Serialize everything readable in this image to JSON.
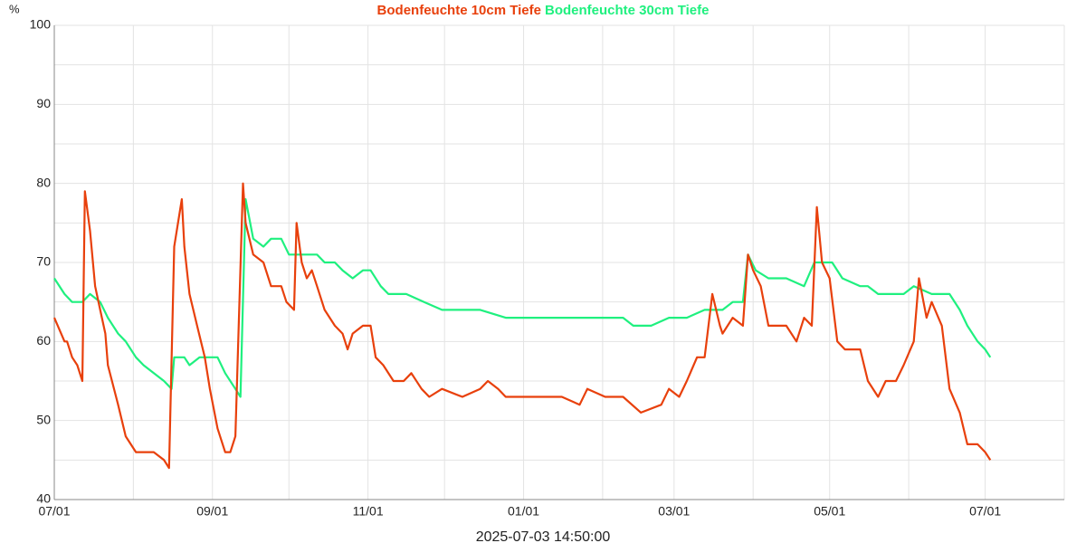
{
  "chart_data": {
    "type": "line",
    "x_label": "2025-07-03 14:50:00",
    "y_label": "%",
    "xlim": [
      0,
      396
    ],
    "xticks": [
      {
        "value": 0,
        "label": "07/01"
      },
      {
        "value": 62,
        "label": "09/01"
      },
      {
        "value": 123,
        "label": "11/01"
      },
      {
        "value": 184,
        "label": "01/01"
      },
      {
        "value": 243,
        "label": "03/01"
      },
      {
        "value": 304,
        "label": "05/01"
      },
      {
        "value": 365,
        "label": "07/01"
      }
    ],
    "xminor": [
      31,
      92,
      153,
      215,
      274,
      335,
      396
    ],
    "ylim": [
      40,
      100
    ],
    "yticks": [
      40,
      50,
      60,
      70,
      80,
      90,
      100
    ],
    "yminor": [
      45,
      55,
      65,
      75,
      85,
      95
    ],
    "grid": true,
    "series": [
      {
        "name": "Bodenfeuchte 10cm Tiefe",
        "color": "#e8400c",
        "x": [
          0,
          4,
          5,
          7,
          9,
          11,
          12,
          14,
          16,
          18,
          20,
          21,
          25,
          28,
          32,
          39,
          43,
          45,
          47,
          50,
          51,
          53,
          56,
          59,
          61,
          64,
          67,
          69,
          71,
          74,
          75,
          78,
          82,
          85,
          89,
          91,
          94,
          95,
          97,
          99,
          101,
          103,
          106,
          110,
          113,
          115,
          117,
          121,
          124,
          126,
          129,
          133,
          137,
          140,
          144,
          147,
          152,
          160,
          167,
          170,
          174,
          177,
          191,
          199,
          206,
          209,
          216,
          223,
          230,
          238,
          241,
          245,
          248,
          252,
          255,
          258,
          261,
          262,
          266,
          270,
          272,
          274,
          277,
          280,
          287,
          291,
          294,
          297,
          299,
          301,
          304,
          307,
          310,
          316,
          319,
          323,
          326,
          330,
          333,
          337,
          339,
          342,
          344,
          348,
          351,
          355,
          358,
          362,
          365,
          367
        ],
        "values": [
          63,
          60,
          60,
          58,
          57,
          55,
          79,
          74,
          67,
          64,
          61,
          57,
          52,
          48,
          46,
          46,
          45,
          44,
          72,
          78,
          72,
          66,
          62,
          58,
          54,
          49,
          46,
          46,
          48,
          80,
          75,
          71,
          70,
          67,
          67,
          65,
          64,
          75,
          70,
          68,
          69,
          67,
          64,
          62,
          61,
          59,
          61,
          62,
          62,
          58,
          57,
          55,
          55,
          56,
          54,
          53,
          54,
          53,
          54,
          55,
          54,
          53,
          53,
          53,
          52,
          54,
          53,
          53,
          51,
          52,
          54,
          53,
          55,
          58,
          58,
          66,
          62,
          61,
          63,
          62,
          71,
          69,
          67,
          62,
          62,
          60,
          63,
          62,
          77,
          70,
          68,
          60,
          59,
          59,
          55,
          53,
          55,
          55,
          57,
          60,
          68,
          63,
          65,
          62,
          54,
          51,
          47,
          47,
          46,
          45
        ]
      },
      {
        "name": "Bodenfeuchte 30cm Tiefe",
        "color": "#1ff07f",
        "x": [
          0,
          4,
          7,
          11,
          14,
          18,
          21,
          25,
          28,
          32,
          35,
          39,
          43,
          46,
          47,
          51,
          53,
          57,
          64,
          67,
          71,
          73,
          75,
          78,
          82,
          85,
          89,
          92,
          96,
          103,
          106,
          110,
          113,
          117,
          121,
          124,
          128,
          131,
          138,
          145,
          152,
          159,
          167,
          177,
          191,
          209,
          223,
          227,
          234,
          241,
          248,
          255,
          262,
          266,
          270,
          272,
          275,
          280,
          287,
          294,
          298,
          305,
          309,
          316,
          319,
          323,
          326,
          333,
          337,
          344,
          351,
          355,
          358,
          362,
          365,
          367
        ],
        "values": [
          68,
          66,
          65,
          65,
          66,
          65,
          63,
          61,
          60,
          58,
          57,
          56,
          55,
          54,
          58,
          58,
          57,
          58,
          58,
          56,
          54,
          53,
          78,
          73,
          72,
          73,
          73,
          71,
          71,
          71,
          70,
          70,
          69,
          68,
          69,
          69,
          67,
          66,
          66,
          65,
          64,
          64,
          64,
          63,
          63,
          63,
          63,
          62,
          62,
          63,
          63,
          64,
          64,
          65,
          65,
          71,
          69,
          68,
          68,
          67,
          70,
          70,
          68,
          67,
          67,
          66,
          66,
          66,
          67,
          66,
          66,
          64,
          62,
          60,
          59,
          58
        ]
      }
    ]
  }
}
